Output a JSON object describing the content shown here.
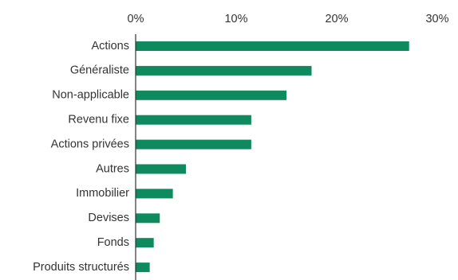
{
  "chart_data": {
    "type": "bar",
    "orientation": "horizontal",
    "title": "",
    "xlabel": "",
    "ylabel": "",
    "categories": [
      "Actions",
      "Généraliste",
      "Non-applicable",
      "Revenu fixe",
      "Actions privées",
      "Autres",
      "Immobilier",
      "Devises",
      "Fonds",
      "Produits structurés"
    ],
    "values": [
      27.2,
      17.5,
      15.0,
      11.5,
      11.5,
      5.0,
      3.7,
      2.4,
      1.8,
      1.4
    ],
    "xlim": [
      0,
      30
    ],
    "x_ticks": [
      "0%",
      "10%",
      "20%",
      "30%"
    ],
    "x_tick_values": [
      0,
      10,
      20,
      30
    ],
    "x_axis_position": "top",
    "grid": false,
    "legend": "none",
    "colors": {
      "bar": "#0f8a5f",
      "axis": "#333333",
      "text": "#333333"
    }
  }
}
